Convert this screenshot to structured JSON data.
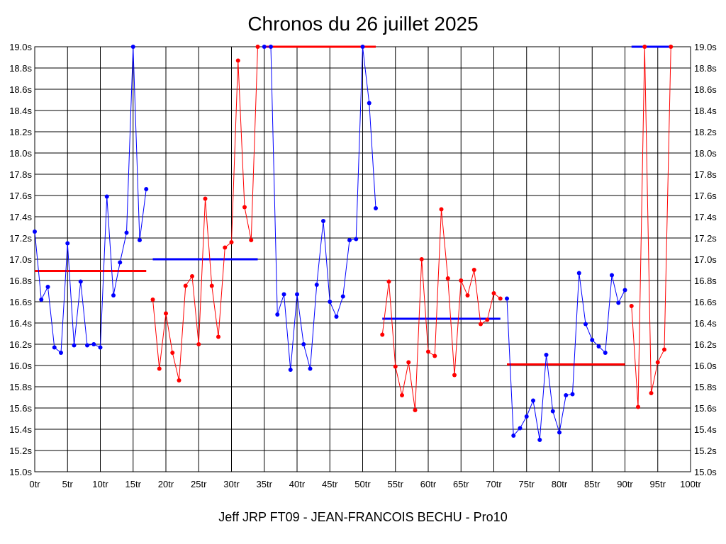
{
  "title": "Chronos du 26 juillet 2025",
  "footer": "Jeff JRP FT09 - JEAN-FRANCOIS BECHU - Pro10",
  "chart_data": {
    "type": "line",
    "title": "Chronos du 26 juillet 2025",
    "xlim": [
      0,
      100
    ],
    "ylim": [
      15.0,
      19.0
    ],
    "x_ticks": [
      0,
      5,
      10,
      15,
      20,
      25,
      30,
      35,
      40,
      45,
      50,
      55,
      60,
      65,
      70,
      75,
      80,
      85,
      90,
      95,
      100
    ],
    "x_tick_suffix": "tr",
    "y_ticks": [
      15.0,
      15.2,
      15.4,
      15.6,
      15.8,
      16.0,
      16.2,
      16.4,
      16.6,
      16.8,
      17.0,
      17.2,
      17.4,
      17.6,
      17.8,
      18.0,
      18.2,
      18.4,
      18.6,
      18.8,
      19.0
    ],
    "y_tick_suffix": "s",
    "grid": true,
    "colors": {
      "blue": "#0000ff",
      "red": "#ff0000",
      "grid": "#000000"
    },
    "series": [
      {
        "color": "#0000ff",
        "avg": 16.89,
        "avg_color": "#ff0000",
        "points": [
          [
            0,
            17.26
          ],
          [
            1,
            16.62
          ],
          [
            2,
            16.74
          ],
          [
            3,
            16.17
          ],
          [
            4,
            16.12
          ],
          [
            5,
            17.15
          ],
          [
            6,
            16.19
          ],
          [
            7,
            16.79
          ],
          [
            8,
            16.19
          ],
          [
            9,
            16.2
          ],
          [
            10,
            16.17
          ],
          [
            11,
            17.59
          ],
          [
            12,
            16.66
          ],
          [
            13,
            16.97
          ],
          [
            14,
            17.25
          ],
          [
            15,
            19.0
          ],
          [
            16,
            17.18
          ],
          [
            17,
            17.66
          ]
        ]
      },
      {
        "color": "#ff0000",
        "avg": 17.0,
        "avg_color": "#0000ff",
        "points": [
          [
            18,
            16.62
          ],
          [
            19,
            15.97
          ],
          [
            20,
            16.49
          ],
          [
            21,
            16.12
          ],
          [
            22,
            15.86
          ],
          [
            23,
            16.75
          ],
          [
            24,
            16.84
          ],
          [
            25,
            16.2
          ],
          [
            26,
            17.57
          ],
          [
            27,
            16.75
          ],
          [
            28,
            16.27
          ],
          [
            29,
            17.11
          ],
          [
            30,
            17.16
          ],
          [
            31,
            18.87
          ],
          [
            32,
            17.49
          ],
          [
            33,
            17.18
          ],
          [
            34,
            19.0
          ]
        ]
      },
      {
        "color": "#0000ff",
        "avg": 19.0,
        "avg_color": "#ff0000",
        "points": [
          [
            35,
            19.0
          ],
          [
            36,
            19.0
          ],
          [
            37,
            16.48
          ],
          [
            38,
            16.67
          ],
          [
            39,
            15.96
          ],
          [
            40,
            16.67
          ],
          [
            41,
            16.2
          ],
          [
            42,
            15.97
          ],
          [
            43,
            16.76
          ],
          [
            44,
            17.36
          ],
          [
            45,
            16.6
          ],
          [
            46,
            16.46
          ],
          [
            47,
            16.65
          ],
          [
            48,
            17.18
          ],
          [
            49,
            17.19
          ],
          [
            50,
            19.0
          ],
          [
            51,
            18.47
          ],
          [
            52,
            17.48
          ]
        ]
      },
      {
        "color": "#ff0000",
        "avg": 16.44,
        "avg_color": "#0000ff",
        "points": [
          [
            53,
            16.29
          ],
          [
            54,
            16.79
          ],
          [
            55,
            15.99
          ],
          [
            56,
            15.72
          ],
          [
            57,
            16.03
          ],
          [
            58,
            15.58
          ],
          [
            59,
            17.0
          ],
          [
            60,
            16.13
          ],
          [
            61,
            16.09
          ],
          [
            62,
            17.47
          ],
          [
            63,
            16.82
          ],
          [
            64,
            15.91
          ],
          [
            65,
            16.8
          ],
          [
            66,
            16.66
          ],
          [
            67,
            16.9
          ],
          [
            68,
            16.39
          ],
          [
            69,
            16.43
          ],
          [
            70,
            16.68
          ],
          [
            71,
            16.63
          ]
        ]
      },
      {
        "color": "#0000ff",
        "avg": 16.01,
        "avg_color": "#ff0000",
        "points": [
          [
            72,
            16.63
          ],
          [
            73,
            15.34
          ],
          [
            74,
            15.41
          ],
          [
            75,
            15.52
          ],
          [
            76,
            15.67
          ],
          [
            77,
            15.3
          ],
          [
            78,
            16.1
          ],
          [
            79,
            15.57
          ],
          [
            80,
            15.37
          ],
          [
            81,
            15.72
          ],
          [
            82,
            15.73
          ],
          [
            83,
            16.87
          ],
          [
            84,
            16.39
          ],
          [
            85,
            16.24
          ],
          [
            86,
            16.18
          ],
          [
            87,
            16.12
          ],
          [
            88,
            16.85
          ],
          [
            89,
            16.59
          ],
          [
            90,
            16.71
          ]
        ]
      },
      {
        "color": "#ff0000",
        "avg": 19.0,
        "avg_color": "#0000ff",
        "points": [
          [
            91,
            16.56
          ],
          [
            92,
            15.61
          ],
          [
            93,
            19.0
          ],
          [
            94,
            15.74
          ],
          [
            95,
            16.03
          ],
          [
            96,
            16.15
          ],
          [
            97,
            19.0
          ]
        ]
      }
    ]
  }
}
